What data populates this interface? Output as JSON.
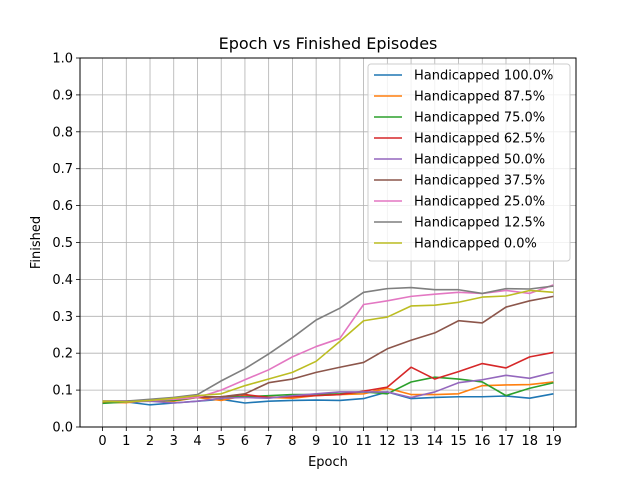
{
  "chart_data": {
    "type": "line",
    "title": "Epoch vs Finished Episodes",
    "xlabel": "Epoch",
    "ylabel": "Finished",
    "xlim": [
      -0.95,
      19.95
    ],
    "ylim": [
      0.0,
      1.0
    ],
    "x_ticks": [
      "0",
      "1",
      "2",
      "3",
      "4",
      "5",
      "6",
      "7",
      "8",
      "9",
      "10",
      "11",
      "12",
      "13",
      "14",
      "15",
      "16",
      "17",
      "18",
      "19"
    ],
    "y_ticks": [
      "0.0",
      "0.1",
      "0.2",
      "0.3",
      "0.4",
      "0.5",
      "0.6",
      "0.7",
      "0.8",
      "0.9",
      "1.0"
    ],
    "grid": true,
    "legend_position": "upper right",
    "x": [
      0,
      1,
      2,
      3,
      4,
      5,
      6,
      7,
      8,
      9,
      10,
      11,
      12,
      13,
      14,
      15,
      16,
      17,
      18,
      19
    ],
    "series": [
      {
        "name": "Handicapped 100.0%",
        "color": "#1f77b4",
        "values": [
          0.067,
          0.068,
          0.06,
          0.065,
          0.07,
          0.075,
          0.065,
          0.07,
          0.072,
          0.073,
          0.072,
          0.077,
          0.095,
          0.077,
          0.08,
          0.082,
          0.082,
          0.084,
          0.078,
          0.09
        ]
      },
      {
        "name": "Handicapped 87.5%",
        "color": "#ff7f0e",
        "values": [
          0.067,
          0.066,
          0.072,
          0.07,
          0.08,
          0.072,
          0.085,
          0.08,
          0.078,
          0.085,
          0.088,
          0.09,
          0.105,
          0.088,
          0.088,
          0.09,
          0.112,
          0.114,
          0.115,
          0.122
        ]
      },
      {
        "name": "Handicapped 75.0%",
        "color": "#2ca02c",
        "values": [
          0.064,
          0.068,
          0.072,
          0.072,
          0.08,
          0.082,
          0.082,
          0.085,
          0.088,
          0.088,
          0.09,
          0.095,
          0.09,
          0.122,
          0.135,
          0.13,
          0.122,
          0.085,
          0.105,
          0.12
        ]
      },
      {
        "name": "Handicapped 62.5%",
        "color": "#d62728",
        "values": [
          0.07,
          0.07,
          0.072,
          0.075,
          0.08,
          0.082,
          0.088,
          0.08,
          0.082,
          0.085,
          0.088,
          0.097,
          0.108,
          0.162,
          0.13,
          0.15,
          0.172,
          0.16,
          0.19,
          0.202
        ]
      },
      {
        "name": "Handicapped 50.0%",
        "color": "#9467bd",
        "values": [
          0.07,
          0.068,
          0.07,
          0.065,
          0.07,
          0.078,
          0.08,
          0.078,
          0.085,
          0.09,
          0.095,
          0.095,
          0.095,
          0.08,
          0.095,
          0.12,
          0.128,
          0.14,
          0.132,
          0.148
        ]
      },
      {
        "name": "Handicapped 37.5%",
        "color": "#8c564b",
        "values": [
          0.07,
          0.07,
          0.072,
          0.075,
          0.082,
          0.082,
          0.09,
          0.12,
          0.13,
          0.148,
          0.162,
          0.175,
          0.212,
          0.235,
          0.255,
          0.288,
          0.282,
          0.325,
          0.342,
          0.354
        ]
      },
      {
        "name": "Handicapped 25.0%",
        "color": "#e377c2",
        "values": [
          0.07,
          0.07,
          0.072,
          0.075,
          0.08,
          0.1,
          0.128,
          0.155,
          0.19,
          0.218,
          0.24,
          0.332,
          0.342,
          0.354,
          0.36,
          0.365,
          0.362,
          0.37,
          0.362,
          0.385
        ]
      },
      {
        "name": "Handicapped 12.5%",
        "color": "#7f7f7f",
        "values": [
          0.07,
          0.07,
          0.075,
          0.08,
          0.088,
          0.125,
          0.158,
          0.198,
          0.242,
          0.29,
          0.322,
          0.365,
          0.375,
          0.378,
          0.372,
          0.372,
          0.362,
          0.375,
          0.374,
          0.382
        ]
      },
      {
        "name": "Handicapped 0.0%",
        "color": "#bcbd22",
        "values": [
          0.07,
          0.068,
          0.072,
          0.078,
          0.085,
          0.09,
          0.112,
          0.13,
          0.148,
          0.178,
          0.232,
          0.288,
          0.298,
          0.328,
          0.33,
          0.338,
          0.352,
          0.355,
          0.37,
          0.365
        ]
      }
    ]
  }
}
